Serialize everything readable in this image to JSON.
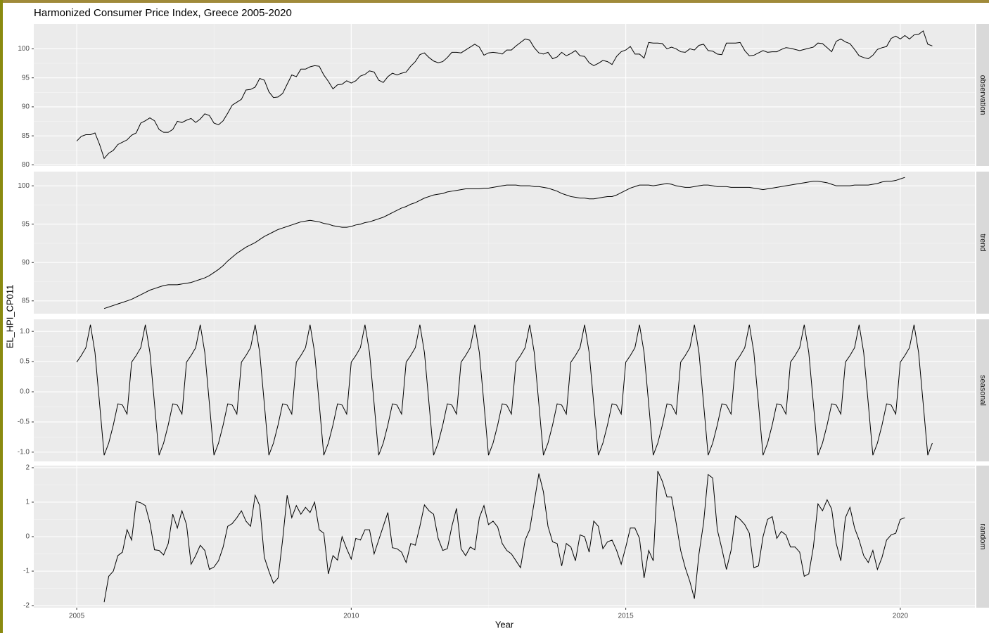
{
  "chart_data": {
    "type": "line",
    "title": "Harmonized Consumer Price Index, Greece 2005-2020",
    "xlabel": "Year",
    "ylabel": "EL_HPI_CP011",
    "color": "#000000",
    "grid": true,
    "xlim": [
      2004.218,
      2021.359
    ],
    "xticks": [
      2005,
      2010,
      2015,
      2020
    ],
    "x": [
      2005,
      2005.083,
      2005.167,
      2005.25,
      2005.333,
      2005.417,
      2005.5,
      2005.583,
      2005.667,
      2005.75,
      2005.833,
      2005.917,
      2006,
      2006.083,
      2006.167,
      2006.25,
      2006.333,
      2006.417,
      2006.5,
      2006.583,
      2006.667,
      2006.75,
      2006.833,
      2006.917,
      2007,
      2007.083,
      2007.167,
      2007.25,
      2007.333,
      2007.417,
      2007.5,
      2007.583,
      2007.667,
      2007.75,
      2007.833,
      2007.917,
      2008,
      2008.083,
      2008.167,
      2008.25,
      2008.333,
      2008.417,
      2008.5,
      2008.583,
      2008.667,
      2008.75,
      2008.833,
      2008.917,
      2009,
      2009.083,
      2009.167,
      2009.25,
      2009.333,
      2009.417,
      2009.5,
      2009.583,
      2009.667,
      2009.75,
      2009.833,
      2009.917,
      2010,
      2010.083,
      2010.167,
      2010.25,
      2010.333,
      2010.417,
      2010.5,
      2010.583,
      2010.667,
      2010.75,
      2010.833,
      2010.917,
      2011,
      2011.083,
      2011.167,
      2011.25,
      2011.333,
      2011.417,
      2011.5,
      2011.583,
      2011.667,
      2011.75,
      2011.833,
      2011.917,
      2012,
      2012.083,
      2012.167,
      2012.25,
      2012.333,
      2012.417,
      2012.5,
      2012.583,
      2012.667,
      2012.75,
      2012.833,
      2012.917,
      2013,
      2013.083,
      2013.167,
      2013.25,
      2013.333,
      2013.417,
      2013.5,
      2013.583,
      2013.667,
      2013.75,
      2013.833,
      2013.917,
      2014,
      2014.083,
      2014.167,
      2014.25,
      2014.333,
      2014.417,
      2014.5,
      2014.583,
      2014.667,
      2014.75,
      2014.833,
      2014.917,
      2015,
      2015.083,
      2015.167,
      2015.25,
      2015.333,
      2015.417,
      2015.5,
      2015.583,
      2015.667,
      2015.75,
      2015.833,
      2015.917,
      2016,
      2016.083,
      2016.167,
      2016.25,
      2016.333,
      2016.417,
      2016.5,
      2016.583,
      2016.667,
      2016.75,
      2016.833,
      2016.917,
      2017,
      2017.083,
      2017.167,
      2017.25,
      2017.333,
      2017.417,
      2017.5,
      2017.583,
      2017.667,
      2017.75,
      2017.833,
      2017.917,
      2018,
      2018.083,
      2018.167,
      2018.25,
      2018.333,
      2018.417,
      2018.5,
      2018.583,
      2018.667,
      2018.75,
      2018.833,
      2018.917,
      2019,
      2019.083,
      2019.167,
      2019.25,
      2019.333,
      2019.417,
      2019.5,
      2019.583,
      2019.667,
      2019.75,
      2019.833,
      2019.917,
      2020,
      2020.083,
      2020.167,
      2020.25,
      2020.333,
      2020.417,
      2020.5,
      2020.583
    ],
    "panels": [
      {
        "label": "observation",
        "ylim": [
          79.8,
          104.3
        ],
        "yticks": [
          80,
          85,
          90,
          95,
          100
        ],
        "values": [
          84.1,
          84.9,
          85.2,
          85.2,
          85.5,
          83.5,
          81.1,
          82.0,
          82.5,
          83.5,
          83.9,
          84.3,
          85.1,
          85.5,
          87.2,
          87.6,
          88.1,
          87.6,
          86.1,
          85.6,
          85.6,
          86.1,
          87.5,
          87.3,
          87.7,
          88.0,
          87.3,
          87.9,
          88.8,
          88.5,
          87.2,
          86.9,
          87.6,
          88.9,
          90.3,
          90.8,
          91.3,
          92.9,
          93.0,
          93.4,
          94.9,
          94.6,
          92.6,
          91.6,
          91.7,
          92.3,
          93.9,
          95.5,
          95.2,
          96.5,
          96.5,
          96.9,
          97.1,
          97.0,
          95.5,
          94.4,
          93.1,
          93.8,
          93.9,
          94.5,
          94.1,
          94.5,
          95.3,
          95.6,
          96.2,
          96.0,
          94.6,
          94.2,
          95.2,
          95.8,
          95.5,
          95.8,
          96.0,
          97.0,
          97.8,
          99.0,
          99.3,
          98.5,
          97.9,
          97.6,
          97.8,
          98.5,
          99.4,
          99.4,
          99.3,
          99.8,
          100.3,
          100.8,
          100.3,
          98.9,
          99.3,
          99.4,
          99.3,
          99.1,
          99.8,
          99.8,
          100.5,
          101.1,
          101.7,
          101.5,
          100.2,
          99.3,
          99.1,
          99.4,
          98.3,
          98.6,
          99.4,
          98.8,
          99.2,
          99.7,
          98.8,
          98.7,
          97.6,
          97.1,
          97.5,
          98.0,
          97.8,
          97.3,
          98.7,
          99.5,
          99.8,
          100.4,
          99.1,
          99.1,
          98.4,
          101.1,
          101.0,
          101.0,
          100.9,
          100.0,
          100.3,
          100.0,
          99.5,
          99.4,
          100.0,
          99.8,
          100.6,
          100.8,
          99.7,
          99.6,
          99.1,
          99.0,
          101.0,
          101.0,
          101.0,
          101.1,
          99.7,
          98.8,
          98.9,
          99.3,
          99.7,
          99.4,
          99.5,
          99.5,
          99.9,
          100.2,
          100.1,
          99.9,
          99.7,
          99.9,
          100.1,
          100.3,
          101.0,
          100.9,
          100.2,
          99.5,
          101.3,
          101.7,
          101.2,
          100.9,
          99.9,
          98.8,
          98.5,
          98.3,
          98.9,
          99.9,
          100.2,
          100.4,
          101.8,
          102.2,
          101.7,
          102.3,
          101.7,
          102.4,
          102.5,
          103.1,
          100.8,
          100.5
        ]
      },
      {
        "label": "trend",
        "ylim": [
          83.33,
          101.85
        ],
        "yticks": [
          85,
          90,
          95,
          100
        ],
        "values": [
          null,
          null,
          null,
          null,
          null,
          null,
          84.0,
          84.2,
          84.4,
          84.6,
          84.8,
          85.0,
          85.2,
          85.5,
          85.8,
          86.1,
          86.4,
          86.6,
          86.8,
          87.0,
          87.1,
          87.1,
          87.1,
          87.2,
          87.3,
          87.4,
          87.6,
          87.8,
          88.0,
          88.3,
          88.7,
          89.1,
          89.6,
          90.2,
          90.7,
          91.2,
          91.6,
          92.0,
          92.3,
          92.6,
          93.0,
          93.4,
          93.7,
          94.0,
          94.3,
          94.5,
          94.7,
          94.9,
          95.1,
          95.3,
          95.4,
          95.5,
          95.4,
          95.3,
          95.1,
          95.0,
          94.8,
          94.7,
          94.6,
          94.6,
          94.7,
          94.9,
          95.0,
          95.2,
          95.3,
          95.5,
          95.7,
          95.9,
          96.2,
          96.5,
          96.8,
          97.1,
          97.3,
          97.6,
          97.8,
          98.1,
          98.4,
          98.6,
          98.8,
          98.9,
          99.0,
          99.2,
          99.3,
          99.4,
          99.5,
          99.6,
          99.6,
          99.6,
          99.6,
          99.7,
          99.7,
          99.8,
          99.9,
          100.0,
          100.1,
          100.1,
          100.1,
          100.0,
          100.0,
          100.0,
          99.9,
          99.9,
          99.8,
          99.7,
          99.5,
          99.3,
          99.0,
          98.8,
          98.6,
          98.5,
          98.4,
          98.4,
          98.3,
          98.3,
          98.4,
          98.5,
          98.6,
          98.6,
          98.8,
          99.1,
          99.4,
          99.7,
          99.9,
          100.1,
          100.1,
          100.1,
          100.0,
          100.1,
          100.2,
          100.3,
          100.2,
          100.0,
          99.9,
          99.8,
          99.8,
          99.9,
          100.0,
          100.1,
          100.1,
          100.0,
          99.9,
          99.9,
          99.9,
          99.8,
          99.8,
          99.8,
          99.8,
          99.8,
          99.7,
          99.6,
          99.5,
          99.6,
          99.7,
          99.8,
          99.9,
          100.0,
          100.1,
          100.2,
          100.3,
          100.4,
          100.5,
          100.6,
          100.6,
          100.5,
          100.4,
          100.2,
          100.0,
          100.0,
          100.0,
          100.0,
          100.1,
          100.1,
          100.1,
          100.1,
          100.2,
          100.3,
          100.5,
          100.6,
          100.6,
          100.7,
          100.9,
          101.1,
          null,
          null,
          null,
          null,
          null,
          null
        ]
      },
      {
        "label": "seasonal",
        "ylim": [
          -1.153,
          1.2
        ],
        "yticks": [
          {
            "value": -1,
            "label": "-1.0"
          },
          {
            "value": -0.5,
            "label": "-0.5"
          },
          {
            "value": 0,
            "label": "0.0"
          },
          {
            "value": 0.5,
            "label": "0.5"
          },
          {
            "value": 1,
            "label": "1.0"
          }
        ],
        "values": [
          0.49,
          0.6,
          0.73,
          1.11,
          0.65,
          -0.2,
          -1.05,
          -0.85,
          -0.55,
          -0.2,
          -0.22,
          -0.37,
          0.49,
          0.6,
          0.73,
          1.11,
          0.65,
          -0.2,
          -1.05,
          -0.85,
          -0.55,
          -0.2,
          -0.22,
          -0.37,
          0.49,
          0.6,
          0.73,
          1.11,
          0.65,
          -0.2,
          -1.05,
          -0.85,
          -0.55,
          -0.2,
          -0.22,
          -0.37,
          0.49,
          0.6,
          0.73,
          1.11,
          0.65,
          -0.2,
          -1.05,
          -0.85,
          -0.55,
          -0.2,
          -0.22,
          -0.37,
          0.49,
          0.6,
          0.73,
          1.11,
          0.65,
          -0.2,
          -1.05,
          -0.85,
          -0.55,
          -0.2,
          -0.22,
          -0.37,
          0.49,
          0.6,
          0.73,
          1.11,
          0.65,
          -0.2,
          -1.05,
          -0.85,
          -0.55,
          -0.2,
          -0.22,
          -0.37,
          0.49,
          0.6,
          0.73,
          1.11,
          0.65,
          -0.2,
          -1.05,
          -0.85,
          -0.55,
          -0.2,
          -0.22,
          -0.37,
          0.49,
          0.6,
          0.73,
          1.11,
          0.65,
          -0.2,
          -1.05,
          -0.85,
          -0.55,
          -0.2,
          -0.22,
          -0.37,
          0.49,
          0.6,
          0.73,
          1.11,
          0.65,
          -0.2,
          -1.05,
          -0.85,
          -0.55,
          -0.2,
          -0.22,
          -0.37,
          0.49,
          0.6,
          0.73,
          1.11,
          0.65,
          -0.2,
          -1.05,
          -0.85,
          -0.55,
          -0.2,
          -0.22,
          -0.37,
          0.49,
          0.6,
          0.73,
          1.11,
          0.65,
          -0.2,
          -1.05,
          -0.85,
          -0.55,
          -0.2,
          -0.22,
          -0.37,
          0.49,
          0.6,
          0.73,
          1.11,
          0.65,
          -0.2,
          -1.05,
          -0.85,
          -0.55,
          -0.2,
          -0.22,
          -0.37,
          0.49,
          0.6,
          0.73,
          1.11,
          0.65,
          -0.2,
          -1.05,
          -0.85,
          -0.55,
          -0.2,
          -0.22,
          -0.37,
          0.49,
          0.6,
          0.73,
          1.11,
          0.65,
          -0.2,
          -1.05,
          -0.85,
          -0.55,
          -0.2,
          -0.22,
          -0.37,
          0.49,
          0.6,
          0.73,
          1.11,
          0.65,
          -0.2,
          -1.05,
          -0.85,
          -0.55,
          -0.2,
          -0.22,
          -0.37,
          0.49,
          0.6,
          0.73,
          1.11,
          0.65,
          -0.2,
          -1.05,
          -0.85
        ]
      },
      {
        "label": "random",
        "ylim": [
          -2.06,
          2.06
        ],
        "yticks": [
          -2,
          -1,
          0,
          1,
          2
        ],
        "values": [
          null,
          null,
          null,
          null,
          null,
          null,
          -1.9,
          -1.15,
          -1.0,
          -0.55,
          -0.45,
          0.2,
          -0.1,
          1.02,
          0.98,
          0.9,
          0.4,
          -0.38,
          -0.4,
          -0.53,
          -0.2,
          0.65,
          0.25,
          0.75,
          0.35,
          -0.8,
          -0.55,
          -0.25,
          -0.4,
          -0.95,
          -0.88,
          -0.7,
          -0.3,
          0.3,
          0.38,
          0.55,
          0.75,
          0.45,
          0.3,
          1.2,
          0.9,
          -0.6,
          -1.0,
          -1.35,
          -1.2,
          -0.1,
          1.2,
          0.55,
          0.9,
          0.65,
          0.85,
          0.7,
          1.0,
          0.2,
          0.1,
          -1.08,
          -0.55,
          -0.68,
          0.0,
          -0.35,
          -0.65,
          -0.05,
          -0.1,
          0.2,
          0.2,
          -0.5,
          -0.1,
          0.3,
          0.7,
          -0.32,
          -0.35,
          -0.45,
          -0.75,
          -0.2,
          -0.25,
          0.3,
          0.92,
          0.75,
          0.65,
          -0.05,
          -0.4,
          -0.35,
          0.3,
          0.82,
          -0.35,
          -0.55,
          -0.3,
          -0.38,
          0.55,
          0.9,
          0.35,
          0.45,
          0.28,
          -0.2,
          -0.4,
          -0.5,
          -0.7,
          -0.9,
          -0.1,
          0.2,
          1.0,
          1.83,
          1.3,
          0.3,
          -0.15,
          -0.2,
          -0.85,
          -0.2,
          -0.3,
          -0.7,
          0.05,
          0.0,
          -0.45,
          0.45,
          0.3,
          -0.35,
          -0.15,
          -0.1,
          -0.4,
          -0.8,
          -0.3,
          0.25,
          0.25,
          -0.05,
          -1.2,
          -0.4,
          -0.7,
          1.9,
          1.6,
          1.15,
          1.15,
          0.4,
          -0.4,
          -0.9,
          -1.3,
          -1.8,
          -0.5,
          0.4,
          1.8,
          1.7,
          0.2,
          -0.35,
          -0.95,
          -0.4,
          0.6,
          0.5,
          0.35,
          0.1,
          -0.9,
          -0.85,
          0.0,
          0.5,
          0.58,
          -0.05,
          0.15,
          0.05,
          -0.3,
          -0.3,
          -0.45,
          -1.15,
          -1.08,
          -0.3,
          0.95,
          0.75,
          1.07,
          0.8,
          -0.2,
          -0.7,
          0.55,
          0.85,
          0.25,
          -0.1,
          -0.55,
          -0.75,
          -0.4,
          -0.95,
          -0.6,
          -0.1,
          0.05,
          0.1,
          0.5,
          0.55,
          null,
          null,
          null,
          null,
          null,
          null
        ]
      }
    ]
  }
}
